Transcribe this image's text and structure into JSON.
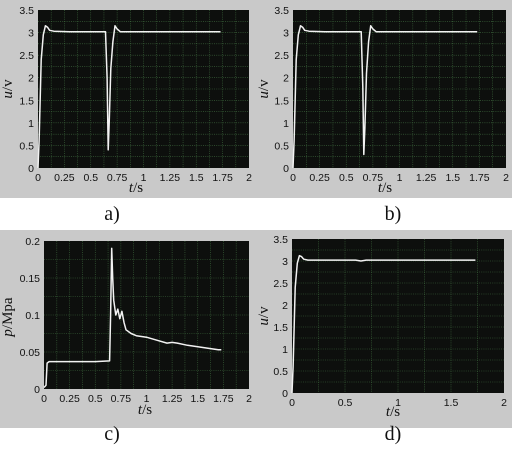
{
  "chart_data": [
    {
      "type": "line",
      "panel": "a",
      "caption": "a)",
      "xlabel": "t/s",
      "ylabel": "u/v",
      "xlim": [
        0,
        2
      ],
      "ylim": [
        0,
        3.5
      ],
      "xticks": [
        "0",
        "0.25",
        "0.5",
        "0.75",
        "1",
        "1.25",
        "1.5",
        "1.75",
        "2"
      ],
      "yticks": [
        "0",
        "0.5",
        "1",
        "1.5",
        "2",
        "2.5",
        "3",
        "3.5"
      ],
      "grid": true,
      "series": [
        {
          "x": [
            0,
            0.01,
            0.03,
            0.05,
            0.07,
            0.09,
            0.11,
            0.15,
            0.3,
            0.5,
            0.64,
            0.655,
            0.665,
            0.675,
            0.69,
            0.71,
            0.73,
            0.75,
            0.78,
            0.85,
            1.0,
            1.25,
            1.5,
            1.73
          ],
          "y": [
            0,
            0.6,
            2.4,
            2.95,
            3.15,
            3.12,
            3.05,
            3.03,
            3.02,
            3.02,
            3.02,
            2.0,
            0.4,
            1.0,
            2.2,
            2.8,
            3.15,
            3.08,
            3.02,
            3.02,
            3.02,
            3.02,
            3.02,
            3.02
          ]
        }
      ]
    },
    {
      "type": "line",
      "panel": "b",
      "caption": "b)",
      "xlabel": "t/s",
      "ylabel": "u/v",
      "xlim": [
        0,
        2
      ],
      "ylim": [
        0,
        3.5
      ],
      "xticks": [
        "0",
        "0.25",
        "0.5",
        "0.75",
        "1",
        "1.25",
        "1.5",
        "1.75",
        "2"
      ],
      "yticks": [
        "0",
        "0.5",
        "1",
        "1.5",
        "2",
        "2.5",
        "3",
        "3.5"
      ],
      "grid": true,
      "series": [
        {
          "x": [
            0,
            0.01,
            0.03,
            0.05,
            0.07,
            0.09,
            0.11,
            0.15,
            0.3,
            0.5,
            0.64,
            0.655,
            0.665,
            0.675,
            0.69,
            0.71,
            0.73,
            0.75,
            0.78,
            0.85,
            1.0,
            1.25,
            1.5,
            1.73
          ],
          "y": [
            0,
            0.6,
            2.4,
            2.95,
            3.15,
            3.12,
            3.05,
            3.03,
            3.02,
            3.02,
            3.02,
            1.8,
            0.3,
            0.9,
            2.1,
            2.8,
            3.15,
            3.08,
            3.02,
            3.02,
            3.02,
            3.02,
            3.02,
            3.02
          ]
        }
      ]
    },
    {
      "type": "line",
      "panel": "c",
      "caption": "c)",
      "xlabel": "t/s",
      "ylabel": "p/Mpa",
      "xlim": [
        0,
        2
      ],
      "ylim": [
        0,
        0.2
      ],
      "xticks": [
        "0",
        "0.25",
        "0.5",
        "0.75",
        "1",
        "1.25",
        "1.5",
        "1.75",
        "2"
      ],
      "yticks": [
        "0",
        "0.05",
        "0.1",
        "0.15",
        "0.2"
      ],
      "grid": true,
      "series": [
        {
          "x": [
            0,
            0.02,
            0.03,
            0.05,
            0.1,
            0.3,
            0.5,
            0.64,
            0.65,
            0.66,
            0.67,
            0.68,
            0.7,
            0.72,
            0.74,
            0.76,
            0.78,
            0.8,
            0.85,
            0.9,
            1.0,
            1.1,
            1.2,
            1.25,
            1.3,
            1.4,
            1.5,
            1.6,
            1.7,
            1.73
          ],
          "y": [
            0.002,
            0.005,
            0.035,
            0.037,
            0.037,
            0.037,
            0.037,
            0.038,
            0.1,
            0.19,
            0.15,
            0.12,
            0.1,
            0.108,
            0.095,
            0.105,
            0.09,
            0.08,
            0.075,
            0.072,
            0.07,
            0.066,
            0.062,
            0.063,
            0.062,
            0.059,
            0.057,
            0.055,
            0.053,
            0.053
          ]
        }
      ]
    },
    {
      "type": "line",
      "panel": "d",
      "caption": "d)",
      "xlabel": "t/s",
      "ylabel": "u/v",
      "xlim": [
        0,
        2
      ],
      "ylim": [
        0,
        3.5
      ],
      "xticks": [
        "0",
        "0.5",
        "1",
        "1.5",
        "2"
      ],
      "yticks": [
        "0",
        "0.5",
        "1",
        "1.5",
        "2",
        "2.5",
        "3",
        "3.5"
      ],
      "grid": true,
      "series": [
        {
          "x": [
            0,
            0.01,
            0.03,
            0.05,
            0.07,
            0.09,
            0.11,
            0.15,
            0.3,
            0.6,
            0.65,
            0.7,
            0.75,
            1.0,
            1.25,
            1.5,
            1.73
          ],
          "y": [
            0,
            0.6,
            2.4,
            2.95,
            3.12,
            3.1,
            3.04,
            3.02,
            3.02,
            3.02,
            3.0,
            3.02,
            3.02,
            3.02,
            3.02,
            3.02,
            3.02
          ]
        }
      ]
    }
  ]
}
